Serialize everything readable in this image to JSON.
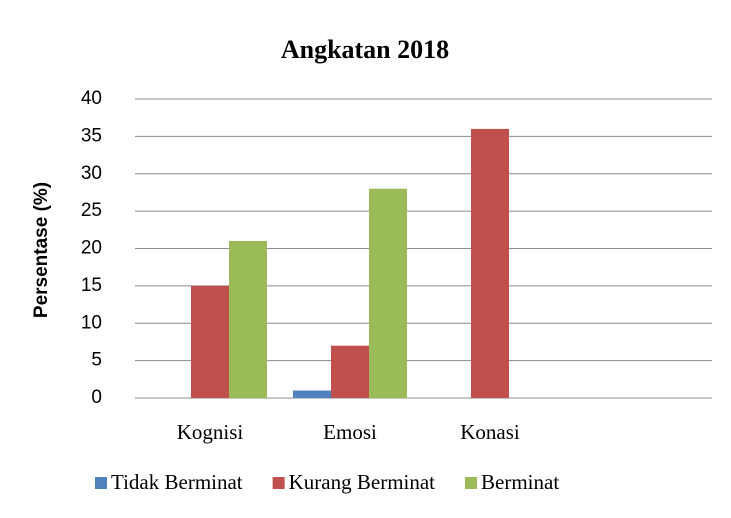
{
  "chart_data": {
    "type": "bar",
    "title": "Angkatan 2018",
    "y_label": "Persentase (%)",
    "categories": [
      "Kognisi",
      "Emosi",
      "Konasi"
    ],
    "series": [
      {
        "name": "Tidak Berminat",
        "color": "#4f81bd",
        "values": [
          0,
          1,
          0
        ]
      },
      {
        "name": "Kurang Berminat",
        "color": "#c0504d",
        "values": [
          15,
          7,
          36
        ]
      },
      {
        "name": "Berminat",
        "color": "#9bbb59",
        "values": [
          21,
          28,
          0
        ]
      }
    ],
    "ylim": [
      0,
      40
    ],
    "yticks": [
      0,
      5,
      10,
      15,
      20,
      25,
      30,
      35,
      40
    ],
    "grid": true,
    "legend": "bottom"
  }
}
